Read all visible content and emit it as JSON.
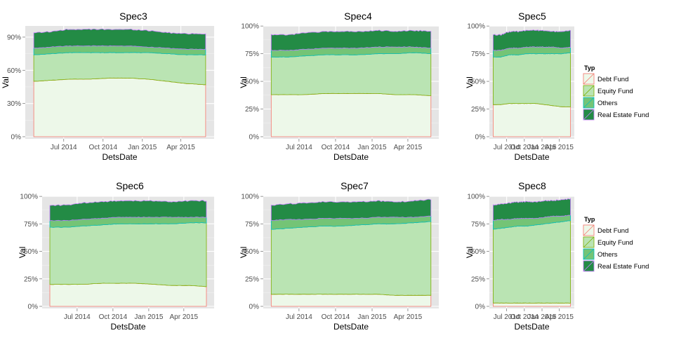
{
  "legend": {
    "title": "Typ",
    "items": [
      {
        "label": "Debt Fund",
        "fill": "#EDF8E9",
        "stroke": "#F8766D"
      },
      {
        "label": "Equity Fund",
        "fill": "#BAE4B3",
        "stroke": "#7CAE00"
      },
      {
        "label": "Others",
        "fill": "#74C476",
        "stroke": "#00BFC4"
      },
      {
        "label": "Real Estate Fund",
        "fill": "#238B45",
        "stroke": "#C77CFF"
      }
    ]
  },
  "chart_data": [
    {
      "type": "area",
      "title": "Spec3",
      "xlabel": "DetsDate",
      "ylabel": "Val",
      "x_range": [
        "2014-04-22",
        "2015-05-29"
      ],
      "xtick_labels": [
        "Jul 2014",
        "Oct 2014",
        "Jan 2015",
        "Apr 2015"
      ],
      "xtick_dates": [
        "2014-07-01",
        "2014-10-01",
        "2015-01-01",
        "2015-04-01"
      ],
      "ylim": [
        0,
        1.02
      ],
      "yticks": [
        0,
        0.3,
        0.6,
        0.9
      ],
      "ytick_labels": [
        "0%",
        "30%",
        "60%",
        "90%"
      ],
      "x": [
        "2014-04-22",
        "2014-06-01",
        "2014-07-15",
        "2014-09-01",
        "2014-10-15",
        "2014-12-01",
        "2015-01-15",
        "2015-03-01",
        "2015-04-15",
        "2015-05-29"
      ],
      "series": [
        {
          "name": "Debt Fund",
          "values": [
            0.5,
            0.51,
            0.52,
            0.52,
            0.53,
            0.53,
            0.52,
            0.5,
            0.48,
            0.47
          ]
        },
        {
          "name": "Equity Fund",
          "values": [
            0.24,
            0.24,
            0.24,
            0.24,
            0.23,
            0.23,
            0.24,
            0.25,
            0.26,
            0.27
          ]
        },
        {
          "name": "Others",
          "values": [
            0.06,
            0.06,
            0.06,
            0.06,
            0.06,
            0.06,
            0.05,
            0.05,
            0.05,
            0.05
          ]
        },
        {
          "name": "Real Estate Fund",
          "values": [
            0.14,
            0.14,
            0.15,
            0.15,
            0.15,
            0.15,
            0.15,
            0.14,
            0.14,
            0.14
          ]
        }
      ]
    },
    {
      "type": "area",
      "title": "Spec4",
      "xlabel": "DetsDate",
      "ylabel": "Val",
      "x_range": [
        "2014-04-22",
        "2015-05-29"
      ],
      "xtick_labels": [
        "Jul 2014",
        "Oct 2014",
        "Jan 2015",
        "Apr 2015"
      ],
      "xtick_dates": [
        "2014-07-01",
        "2014-10-01",
        "2015-01-01",
        "2015-04-01"
      ],
      "ylim": [
        0,
        1.02
      ],
      "yticks": [
        0,
        0.25,
        0.5,
        0.75,
        1.0
      ],
      "ytick_labels": [
        "0%",
        "25%",
        "50%",
        "75%",
        "100%"
      ],
      "x": [
        "2014-04-22",
        "2014-06-01",
        "2014-07-15",
        "2014-09-01",
        "2014-10-15",
        "2014-12-01",
        "2015-01-15",
        "2015-03-01",
        "2015-04-15",
        "2015-05-29"
      ],
      "series": [
        {
          "name": "Debt Fund",
          "values": [
            0.38,
            0.38,
            0.38,
            0.39,
            0.39,
            0.39,
            0.39,
            0.38,
            0.38,
            0.37
          ]
        },
        {
          "name": "Equity Fund",
          "values": [
            0.34,
            0.34,
            0.35,
            0.35,
            0.35,
            0.35,
            0.36,
            0.37,
            0.38,
            0.38
          ]
        },
        {
          "name": "Others",
          "values": [
            0.06,
            0.06,
            0.06,
            0.06,
            0.06,
            0.06,
            0.06,
            0.06,
            0.05,
            0.05
          ]
        },
        {
          "name": "Real Estate Fund",
          "values": [
            0.14,
            0.14,
            0.15,
            0.15,
            0.15,
            0.15,
            0.15,
            0.14,
            0.15,
            0.15
          ]
        }
      ]
    },
    {
      "type": "area",
      "title": "Spec5",
      "xlabel": "DetsDate",
      "ylabel": "Val",
      "x_range": [
        "2014-04-22",
        "2015-05-29"
      ],
      "xtick_labels": [
        "Jul 2014",
        "Oct 2014",
        "Jan 2015",
        "Apr 2015"
      ],
      "xtick_dates": [
        "2014-07-01",
        "2014-10-01",
        "2015-01-01",
        "2015-04-01"
      ],
      "ylim": [
        0,
        1.02
      ],
      "yticks": [
        0,
        0.25,
        0.5,
        0.75,
        1.0
      ],
      "ytick_labels": [
        "0%",
        "25%",
        "50%",
        "75%",
        "100%"
      ],
      "x": [
        "2014-04-22",
        "2014-06-01",
        "2014-07-15",
        "2014-09-01",
        "2014-10-15",
        "2014-12-01",
        "2015-01-15",
        "2015-03-01",
        "2015-04-15",
        "2015-05-29"
      ],
      "series": [
        {
          "name": "Debt Fund",
          "values": [
            0.29,
            0.29,
            0.3,
            0.3,
            0.3,
            0.3,
            0.29,
            0.28,
            0.27,
            0.27
          ]
        },
        {
          "name": "Equity Fund",
          "values": [
            0.43,
            0.43,
            0.44,
            0.44,
            0.45,
            0.45,
            0.46,
            0.47,
            0.48,
            0.49
          ]
        },
        {
          "name": "Others",
          "values": [
            0.06,
            0.06,
            0.06,
            0.06,
            0.06,
            0.06,
            0.06,
            0.06,
            0.05,
            0.05
          ]
        },
        {
          "name": "Real Estate Fund",
          "values": [
            0.14,
            0.14,
            0.15,
            0.15,
            0.15,
            0.15,
            0.15,
            0.14,
            0.15,
            0.15
          ]
        }
      ]
    },
    {
      "type": "area",
      "title": "Spec6",
      "xlabel": "DetsDate",
      "ylabel": "Val",
      "x_range": [
        "2014-04-22",
        "2015-05-29"
      ],
      "xtick_labels": [
        "Jul 2014",
        "Oct 2014",
        "Jan 2015",
        "Apr 2015"
      ],
      "xtick_dates": [
        "2014-07-01",
        "2014-10-01",
        "2015-01-01",
        "2015-04-01"
      ],
      "ylim": [
        0,
        1.02
      ],
      "yticks": [
        0,
        0.25,
        0.5,
        0.75,
        1.0
      ],
      "ytick_labels": [
        "0%",
        "25%",
        "50%",
        "75%",
        "100%"
      ],
      "x": [
        "2014-04-22",
        "2014-06-01",
        "2014-07-15",
        "2014-09-01",
        "2014-10-15",
        "2014-12-01",
        "2015-01-15",
        "2015-03-01",
        "2015-04-15",
        "2015-05-29"
      ],
      "series": [
        {
          "name": "Debt Fund",
          "values": [
            0.2,
            0.2,
            0.2,
            0.21,
            0.21,
            0.21,
            0.2,
            0.19,
            0.19,
            0.18
          ]
        },
        {
          "name": "Equity Fund",
          "values": [
            0.52,
            0.52,
            0.53,
            0.53,
            0.54,
            0.54,
            0.55,
            0.56,
            0.57,
            0.58
          ]
        },
        {
          "name": "Others",
          "values": [
            0.06,
            0.06,
            0.06,
            0.06,
            0.06,
            0.06,
            0.06,
            0.06,
            0.05,
            0.05
          ]
        },
        {
          "name": "Real Estate Fund",
          "values": [
            0.14,
            0.14,
            0.15,
            0.15,
            0.15,
            0.15,
            0.15,
            0.14,
            0.15,
            0.15
          ]
        }
      ]
    },
    {
      "type": "area",
      "title": "Spec7",
      "xlabel": "DetsDate",
      "ylabel": "Val",
      "x_range": [
        "2014-04-22",
        "2015-05-29"
      ],
      "xtick_labels": [
        "Jul 2014",
        "Oct 2014",
        "Jan 2015",
        "Apr 2015"
      ],
      "xtick_dates": [
        "2014-07-01",
        "2014-10-01",
        "2015-01-01",
        "2015-04-01"
      ],
      "ylim": [
        0,
        1.02
      ],
      "yticks": [
        0,
        0.25,
        0.5,
        0.75,
        1.0
      ],
      "ytick_labels": [
        "0%",
        "25%",
        "50%",
        "75%",
        "100%"
      ],
      "x": [
        "2014-04-22",
        "2014-06-01",
        "2014-07-15",
        "2014-09-01",
        "2014-10-15",
        "2014-12-01",
        "2015-01-15",
        "2015-03-01",
        "2015-04-15",
        "2015-05-29"
      ],
      "series": [
        {
          "name": "Debt Fund",
          "values": [
            0.11,
            0.11,
            0.11,
            0.11,
            0.11,
            0.11,
            0.11,
            0.1,
            0.1,
            0.1
          ]
        },
        {
          "name": "Equity Fund",
          "values": [
            0.59,
            0.6,
            0.61,
            0.62,
            0.62,
            0.63,
            0.64,
            0.65,
            0.66,
            0.67
          ]
        },
        {
          "name": "Others",
          "values": [
            0.08,
            0.08,
            0.07,
            0.07,
            0.07,
            0.06,
            0.06,
            0.06,
            0.05,
            0.05
          ]
        },
        {
          "name": "Real Estate Fund",
          "values": [
            0.14,
            0.14,
            0.15,
            0.15,
            0.15,
            0.15,
            0.15,
            0.14,
            0.15,
            0.15
          ]
        }
      ]
    },
    {
      "type": "area",
      "title": "Spec8",
      "xlabel": "DetsDate",
      "ylabel": "Val",
      "x_range": [
        "2014-04-22",
        "2015-05-29"
      ],
      "xtick_labels": [
        "Jul 2014",
        "Oct 2014",
        "Jan 2015",
        "Apr 2015"
      ],
      "xtick_dates": [
        "2014-07-01",
        "2014-10-01",
        "2015-01-01",
        "2015-04-01"
      ],
      "ylim": [
        0,
        1.02
      ],
      "yticks": [
        0,
        0.25,
        0.5,
        0.75,
        1.0
      ],
      "ytick_labels": [
        "0%",
        "25%",
        "50%",
        "75%",
        "100%"
      ],
      "x": [
        "2014-04-22",
        "2014-06-01",
        "2014-07-15",
        "2014-09-01",
        "2014-10-15",
        "2014-12-01",
        "2015-01-15",
        "2015-03-01",
        "2015-04-15",
        "2015-05-29"
      ],
      "series": [
        {
          "name": "Debt Fund",
          "values": [
            0.03,
            0.03,
            0.03,
            0.03,
            0.03,
            0.03,
            0.03,
            0.03,
            0.03,
            0.03
          ]
        },
        {
          "name": "Equity Fund",
          "values": [
            0.67,
            0.68,
            0.69,
            0.7,
            0.7,
            0.71,
            0.72,
            0.73,
            0.74,
            0.75
          ]
        },
        {
          "name": "Others",
          "values": [
            0.08,
            0.08,
            0.07,
            0.07,
            0.07,
            0.06,
            0.06,
            0.06,
            0.05,
            0.05
          ]
        },
        {
          "name": "Real Estate Fund",
          "values": [
            0.14,
            0.14,
            0.15,
            0.15,
            0.15,
            0.15,
            0.15,
            0.14,
            0.15,
            0.15
          ]
        }
      ]
    }
  ]
}
